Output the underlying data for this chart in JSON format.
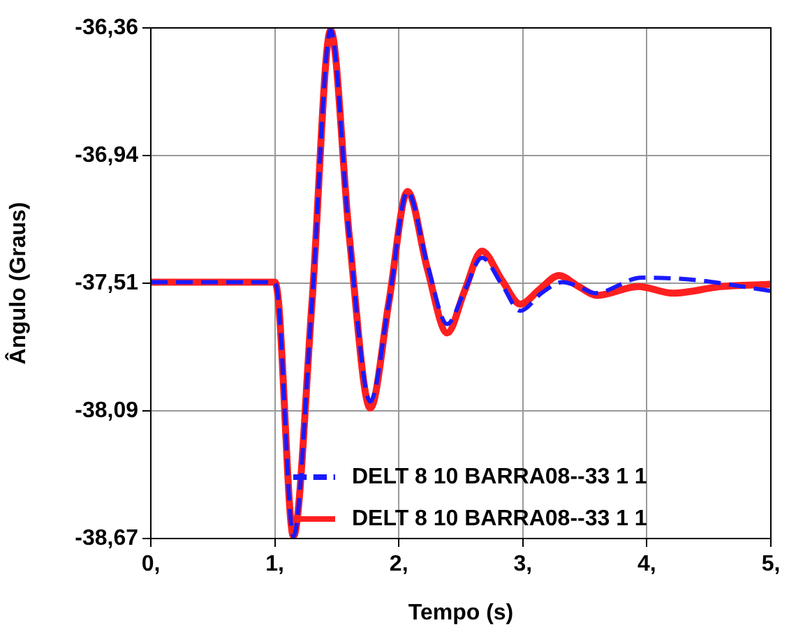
{
  "chart_data": {
    "type": "line",
    "xlabel": "Tempo (s)",
    "ylabel": "Ângulo (Graus)",
    "xlim": [
      0,
      5
    ],
    "xticks": [
      {
        "value": 0,
        "label": "0,"
      },
      {
        "value": 1,
        "label": "1,"
      },
      {
        "value": 2,
        "label": "2,"
      },
      {
        "value": 3,
        "label": "3,"
      },
      {
        "value": 4,
        "label": "4,"
      },
      {
        "value": 5,
        "label": "5,"
      }
    ],
    "ylim": [
      -38.67,
      -36.36
    ],
    "yticks": [
      {
        "value": -38.67,
        "label": "-38,67"
      },
      {
        "value": -38.0925,
        "label": "-38,09"
      },
      {
        "value": -37.515,
        "label": "-37,51"
      },
      {
        "value": -36.9375,
        "label": "-36,94"
      },
      {
        "value": -36.36,
        "label": "-36,36"
      }
    ],
    "grid": true,
    "legend": "bottom",
    "marker": "none",
    "series": [
      {
        "name": "DELT 8 10 BARRA08--33 1 1",
        "color": "#1a1aff",
        "line_style": "dashed",
        "x": [
          0,
          1.0,
          1.03,
          1.15,
          1.3,
          1.45,
          1.6,
          1.77,
          1.92,
          2.07,
          2.23,
          2.39,
          2.53,
          2.67,
          2.83,
          2.98,
          3.15,
          3.32,
          3.45,
          3.58,
          3.96,
          4.38,
          5
        ],
        "values": [
          -37.51,
          -37.51,
          -37.6,
          -38.66,
          -37.6,
          -36.37,
          -37.3,
          -38.05,
          -37.6,
          -37.1,
          -37.43,
          -37.7,
          -37.55,
          -37.4,
          -37.52,
          -37.64,
          -37.56,
          -37.51,
          -37.53,
          -37.56,
          -37.49,
          -37.5,
          -37.55
        ]
      },
      {
        "name": "DELT 8 10 BARRA08--33 1 1",
        "color": "#ff2020",
        "line_style": "solid",
        "x": [
          0,
          1.0,
          1.03,
          1.15,
          1.3,
          1.45,
          1.6,
          1.77,
          1.92,
          2.07,
          2.23,
          2.39,
          2.53,
          2.67,
          2.83,
          2.98,
          3.14,
          3.29,
          3.45,
          3.6,
          3.93,
          4.21,
          4.6,
          5
        ],
        "values": [
          -37.51,
          -37.51,
          -37.6,
          -38.66,
          -37.6,
          -36.37,
          -37.3,
          -38.08,
          -37.6,
          -37.1,
          -37.45,
          -37.74,
          -37.55,
          -37.37,
          -37.5,
          -37.61,
          -37.54,
          -37.48,
          -37.53,
          -37.57,
          -37.53,
          -37.56,
          -37.53,
          -37.52
        ]
      }
    ]
  }
}
